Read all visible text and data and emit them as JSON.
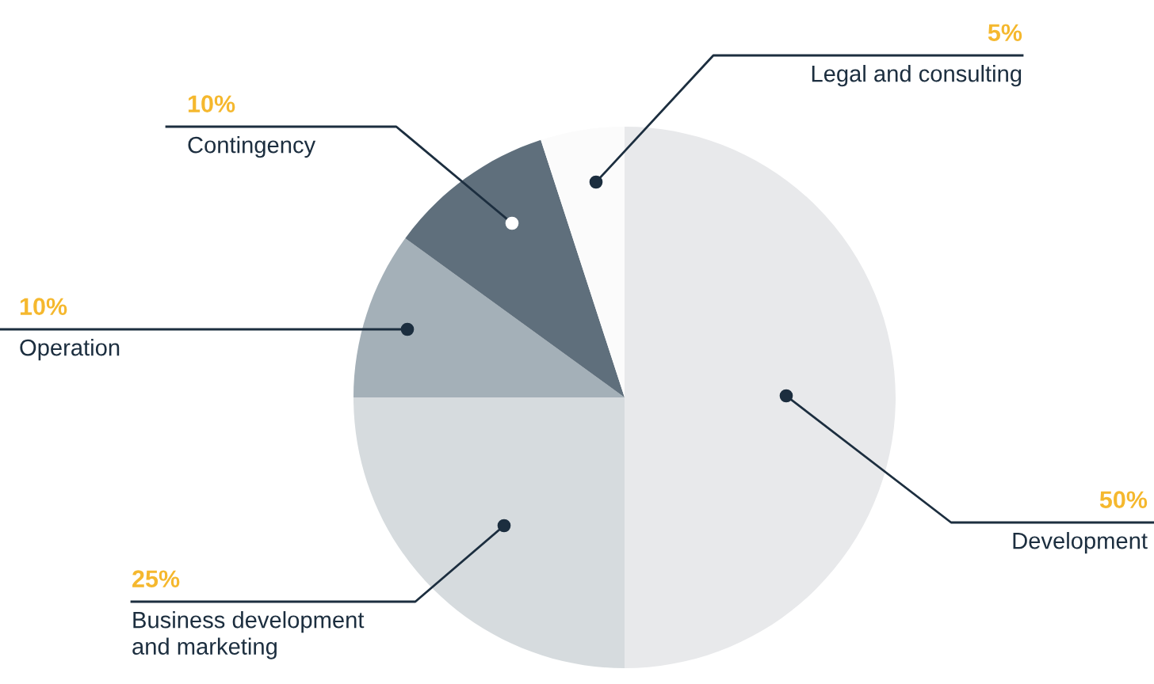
{
  "chart_data": {
    "type": "pie",
    "categories": [
      "Development",
      "Business development\nand marketing",
      "Operation",
      "Contingency",
      "Legal and consulting"
    ],
    "values": [
      50,
      25,
      10,
      10,
      5
    ],
    "value_labels": [
      "50%",
      "25%",
      "10%",
      "10%",
      "5%"
    ],
    "colors": [
      "#e8e9eb",
      "#d6dbde",
      "#a4b0b8",
      "#5f6f7c",
      "#fbfbfb"
    ]
  }
}
